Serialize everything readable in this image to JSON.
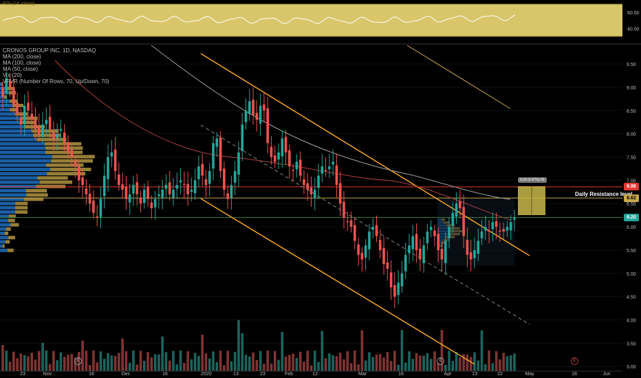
{
  "header": {
    "rsi_title": "RSI (14, close)",
    "symbol_line": "CRONOS GROUP INC, 1D, NASDAQ",
    "indicators": [
      "MA (200, close)",
      "MA (100, close)",
      "MA (50, close)",
      "Vol (20)",
      "VPVR (Number Of Rows, 70, Up/Down, 70)"
    ]
  },
  "annotations": {
    "daily_resistance": "Daily Resistance level",
    "measure_label": "0.59 (9.47%) 59",
    "price_tags": [
      {
        "name": "price-tag-resistance",
        "text": "6.86",
        "price": 6.86,
        "bg": "#e53935",
        "fg": "#ffffff"
      },
      {
        "name": "price-tag-ma",
        "text": "6.62",
        "price": 6.62,
        "bg": "#c8a84a",
        "fg": "#000000"
      },
      {
        "name": "price-tag-last",
        "text": "6.20",
        "price": 6.2,
        "bg": "#26a69a",
        "fg": "#ffffff"
      }
    ],
    "earnings_markers": [
      {
        "date_index": 22,
        "label": "E"
      },
      {
        "date_index": 74,
        "label": "E"
      },
      {
        "date_index": 145,
        "label": "E"
      }
    ],
    "future_earnings_marker": {
      "label": "E"
    }
  },
  "colors": {
    "up": "#26a69a",
    "down": "#ef5350",
    "channel": "#f5a623",
    "resistance": "#e53935",
    "ma_line": "#c8a84a",
    "rsi_bg": "#d9c66a",
    "support_green": "#2e7d32"
  },
  "chart_data": {
    "type": "candlestick",
    "title": "CRONOS GROUP INC, 1D, NASDAQ",
    "y_ticks": [
      3.0,
      3.5,
      4.0,
      4.5,
      5.0,
      5.5,
      6.0,
      6.5,
      7.0,
      7.5,
      8.0,
      8.5,
      9.0,
      9.5
    ],
    "ylim": [
      2.9,
      9.9
    ],
    "x_tick_labels": [
      "23",
      "Nov",
      "18",
      "Dec",
      "16",
      "2020",
      "13",
      "23",
      "Feb",
      "12",
      "Mar",
      "16",
      "Apr",
      "13",
      "22",
      "May",
      "18",
      "Jun"
    ],
    "rsi_ticks": [
      40.0,
      60.0
    ],
    "horizontal_levels": [
      {
        "price": 6.86,
        "color": "#e53935"
      },
      {
        "price": 6.62,
        "color": "#c8a84a"
      },
      {
        "price": 6.2,
        "color": "#2e7d32"
      }
    ],
    "close_series": [
      8.8,
      9.2,
      9.0,
      8.6,
      8.4,
      8.2,
      8.6,
      8.5,
      8.3,
      8.1,
      8.0,
      8.2,
      8.3,
      8.1,
      7.9,
      8.0,
      8.1,
      7.8,
      7.6,
      7.5,
      7.3,
      7.0,
      6.9,
      6.7,
      6.5,
      6.3,
      6.2,
      6.6,
      7.1,
      7.5,
      7.6,
      7.2,
      6.9,
      6.8,
      6.6,
      6.7,
      6.9,
      6.7,
      6.5,
      6.8,
      6.6,
      6.4,
      6.6,
      6.7,
      6.8,
      6.9,
      6.7,
      6.8,
      6.9,
      7.0,
      6.9,
      6.7,
      6.8,
      7.0,
      7.3,
      7.1,
      6.9,
      7.2,
      7.8,
      7.9,
      7.2,
      6.8,
      6.6,
      6.9,
      7.2,
      7.6,
      8.2,
      8.5,
      8.7,
      8.4,
      8.3,
      8.6,
      8.5,
      7.8,
      7.5,
      7.4,
      7.6,
      7.9,
      7.6,
      7.3,
      7.2,
      7.4,
      7.1,
      6.9,
      6.8,
      6.7,
      6.8,
      7.1,
      7.3,
      7.2,
      7.3,
      7.4,
      6.9,
      6.5,
      6.2,
      6.1,
      6.0,
      5.7,
      5.4,
      5.3,
      5.6,
      5.9,
      6.0,
      5.8,
      5.5,
      5.2,
      5.1,
      4.7,
      4.5,
      4.8,
      5.0,
      5.4,
      5.6,
      5.8,
      5.5,
      5.3,
      5.6,
      5.9,
      6.0,
      5.8,
      5.5,
      5.3,
      5.7,
      6.0,
      6.3,
      6.5,
      6.4,
      5.8,
      5.4,
      5.3,
      5.5,
      5.7,
      5.9,
      6.0,
      5.9,
      6.1,
      6.0,
      5.9,
      5.9,
      6.0,
      6.1,
      6.2
    ],
    "rsi_range": [
      30,
      70
    ]
  }
}
